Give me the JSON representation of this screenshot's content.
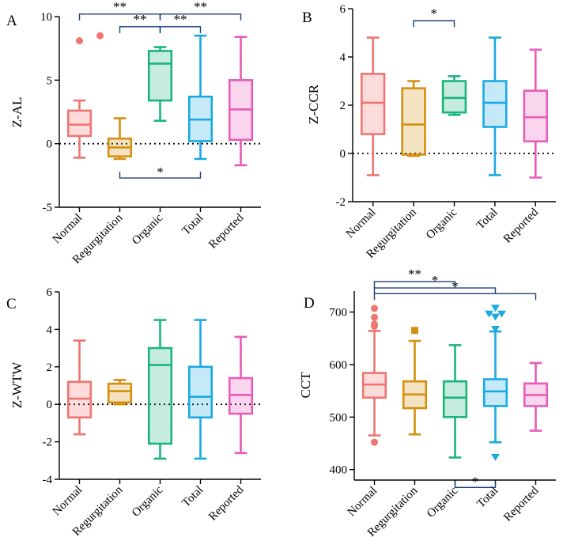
{
  "chart_data": [
    {
      "panel": "A",
      "type": "boxplot",
      "ylabel": "Z-AL",
      "ylim": [
        -5,
        10
      ],
      "yticks": [
        -5,
        0,
        5,
        10
      ],
      "reference_line": 0,
      "categories": [
        "Normal",
        "Regurgitation",
        "Organic",
        "Total",
        "Reported"
      ],
      "series": [
        {
          "name": "Normal",
          "color": "#ee7570",
          "min": -1.1,
          "q1": 0.6,
          "median": 1.5,
          "q3": 2.6,
          "max": 3.4,
          "outliers": [
            8.1,
            8.5
          ]
        },
        {
          "name": "Regurgitation",
          "color": "#d4900e",
          "min": -1.2,
          "q1": -1.0,
          "median": -0.3,
          "q3": 0.4,
          "max": 2.0,
          "outliers": []
        },
        {
          "name": "Organic",
          "color": "#1bb57c",
          "min": 1.8,
          "q1": 3.4,
          "median": 6.3,
          "q3": 7.3,
          "max": 7.6,
          "outliers": []
        },
        {
          "name": "Total",
          "color": "#1aa9e0",
          "min": -1.2,
          "q1": 0.2,
          "median": 1.9,
          "q3": 3.7,
          "max": 8.5,
          "outliers": []
        },
        {
          "name": "Reported",
          "color": "#e85cb9",
          "min": -1.7,
          "q1": 0.3,
          "median": 2.7,
          "q3": 5.0,
          "max": 8.4,
          "outliers": []
        }
      ],
      "significance": [
        {
          "from": "Normal",
          "to": "Organic",
          "label": "**",
          "level": 10.2,
          "placement": "above"
        },
        {
          "from": "Organic",
          "to": "Reported",
          "label": "**",
          "level": 10.2,
          "placement": "above"
        },
        {
          "from": "Regurgitation",
          "to": "Organic",
          "label": "**",
          "level": 9.2,
          "placement": "above"
        },
        {
          "from": "Organic",
          "to": "Total",
          "label": "**",
          "level": 9.2,
          "placement": "above"
        },
        {
          "from": "Regurgitation",
          "to": "Total",
          "label": "*",
          "level": -2.7,
          "placement": "below"
        }
      ]
    },
    {
      "panel": "B",
      "type": "boxplot",
      "ylabel": "Z-CCR",
      "ylim": [
        -2,
        6
      ],
      "yticks": [
        -2,
        0,
        2,
        4,
        6
      ],
      "reference_line": 0,
      "categories": [
        "Normal",
        "Regurgitation",
        "Organic",
        "Total",
        "Reported"
      ],
      "series": [
        {
          "name": "Normal",
          "color": "#ee7570",
          "min": -0.9,
          "q1": 0.8,
          "median": 2.1,
          "q3": 3.3,
          "max": 4.8,
          "outliers": []
        },
        {
          "name": "Regurgitation",
          "color": "#d4900e",
          "min": -0.1,
          "q1": -0.05,
          "median": 1.2,
          "q3": 2.7,
          "max": 3.0,
          "outliers": []
        },
        {
          "name": "Organic",
          "color": "#1bb57c",
          "min": 1.6,
          "q1": 1.7,
          "median": 2.3,
          "q3": 3.0,
          "max": 3.2,
          "outliers": []
        },
        {
          "name": "Total",
          "color": "#1aa9e0",
          "min": -0.9,
          "q1": 1.1,
          "median": 2.1,
          "q3": 3.0,
          "max": 4.8,
          "outliers": []
        },
        {
          "name": "Reported",
          "color": "#e85cb9",
          "min": -1.0,
          "q1": 0.5,
          "median": 1.5,
          "q3": 2.6,
          "max": 4.3,
          "outliers": []
        }
      ],
      "significance": [
        {
          "from": "Regurgitation",
          "to": "Organic",
          "label": "*",
          "level": 5.5,
          "placement": "above"
        }
      ]
    },
    {
      "panel": "C",
      "type": "boxplot",
      "ylabel": "Z-WTW",
      "ylim": [
        -4,
        6
      ],
      "yticks": [
        -4,
        -2,
        0,
        2,
        4,
        6
      ],
      "reference_line": 0,
      "categories": [
        "Normal",
        "Regurgitation",
        "Organic",
        "Total",
        "Reported"
      ],
      "series": [
        {
          "name": "Normal",
          "color": "#ee7570",
          "min": -1.6,
          "q1": -0.7,
          "median": 0.3,
          "q3": 1.2,
          "max": 3.4,
          "outliers": []
        },
        {
          "name": "Regurgitation",
          "color": "#d4900e",
          "min": 0.0,
          "q1": 0.1,
          "median": 0.7,
          "q3": 1.1,
          "max": 1.3,
          "outliers": []
        },
        {
          "name": "Organic",
          "color": "#1bb57c",
          "min": -2.9,
          "q1": -2.1,
          "median": 2.1,
          "q3": 3.0,
          "max": 4.5,
          "outliers": []
        },
        {
          "name": "Total",
          "color": "#1aa9e0",
          "min": -2.9,
          "q1": -0.7,
          "median": 0.4,
          "q3": 2.0,
          "max": 4.5,
          "outliers": []
        },
        {
          "name": "Reported",
          "color": "#e85cb9",
          "min": -2.6,
          "q1": -0.5,
          "median": 0.5,
          "q3": 1.4,
          "max": 3.6,
          "outliers": []
        }
      ],
      "significance": []
    },
    {
      "panel": "D",
      "type": "boxplot",
      "ylabel": "CCT",
      "ylim": [
        380,
        740
      ],
      "yticks": [
        400,
        500,
        600,
        700
      ],
      "reference_line": null,
      "categories": [
        "Normal",
        "Regurgitation",
        "Organic",
        "Total",
        "Reported"
      ],
      "series": [
        {
          "name": "Normal",
          "color": "#ee7570",
          "min": 465,
          "q1": 537,
          "median": 562,
          "q3": 584,
          "max": 664,
          "outliers": [
            452,
            673,
            677,
            690,
            707
          ],
          "outlier_marker": "circle"
        },
        {
          "name": "Regurgitation",
          "color": "#d4900e",
          "min": 467,
          "q1": 517,
          "median": 543,
          "q3": 568,
          "max": 645,
          "outliers": [
            665
          ],
          "outlier_marker": "square"
        },
        {
          "name": "Organic",
          "color": "#1bb57c",
          "min": 423,
          "q1": 500,
          "median": 537,
          "q3": 568,
          "max": 637,
          "outliers": []
        },
        {
          "name": "Total",
          "color": "#1aa9e0",
          "min": 452,
          "q1": 521,
          "median": 549,
          "q3": 572,
          "max": 663,
          "outliers": [
            424,
            668,
            691,
            697,
            697,
            708
          ],
          "outlier_marker": "triangle"
        },
        {
          "name": "Reported",
          "color": "#e85cb9",
          "min": 474,
          "q1": 521,
          "median": 542,
          "q3": 564,
          "max": 603,
          "outliers": []
        }
      ],
      "significance": [
        {
          "from": "Normal",
          "to": "Organic",
          "label": "**",
          "level": 758,
          "placement": "above"
        },
        {
          "from": "Normal",
          "to": "Total",
          "label": "*",
          "level": 746,
          "placement": "above"
        },
        {
          "from": "Normal",
          "to": "Reported",
          "label": "*",
          "level": 735,
          "placement": "above"
        },
        {
          "from": "Organic",
          "to": "Total",
          "label": "*",
          "level": 366,
          "placement": "below"
        }
      ]
    }
  ]
}
